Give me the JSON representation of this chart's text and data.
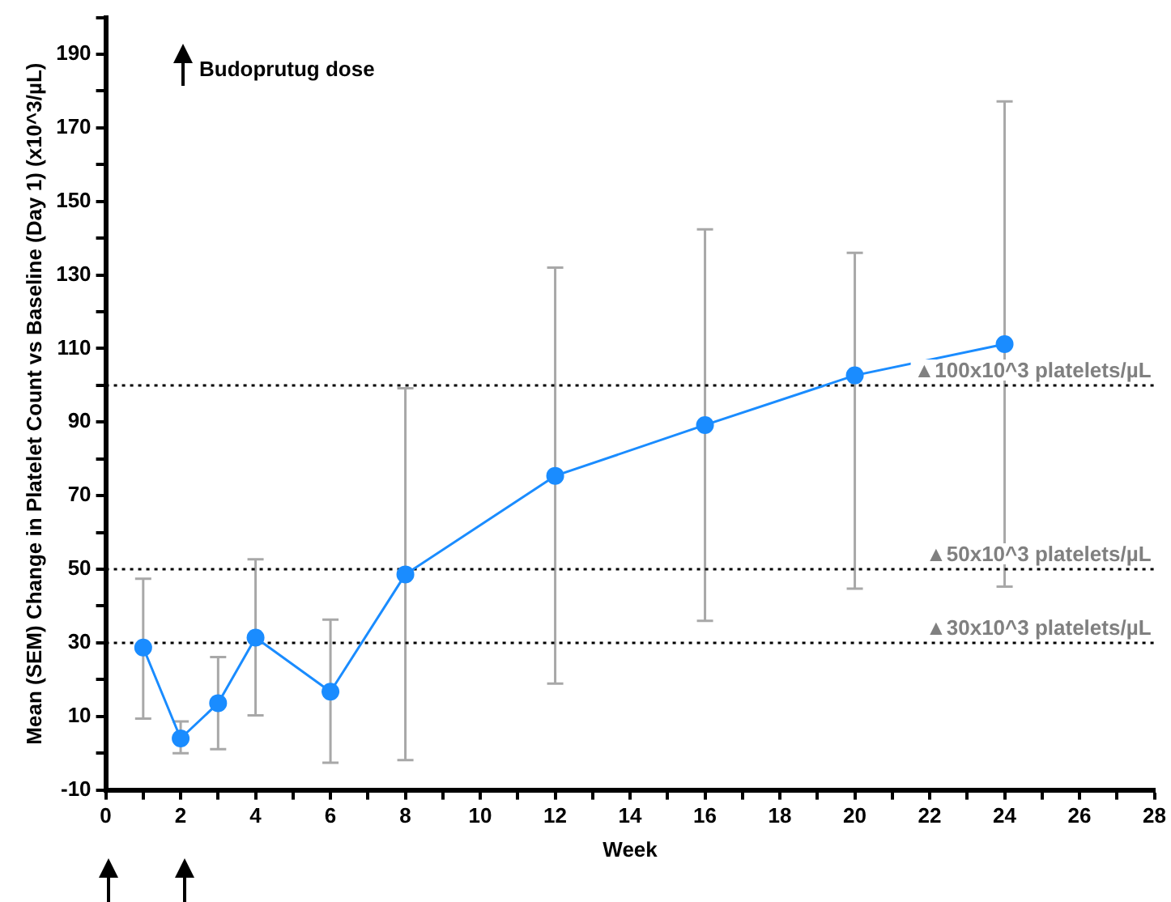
{
  "chart_data": {
    "type": "line",
    "xlabel": "Week",
    "ylabel": "Mean (SEM) Change in Platelet Count vs Baseline (Day 1) (x10^3/µL)",
    "annotations": [
      "Budoprutug dose"
    ],
    "x": [
      1,
      2,
      3,
      4,
      6,
      8,
      12,
      16,
      20,
      24
    ],
    "series": [
      {
        "color": "#1a8cff",
        "values": [
          28.7,
          4,
          13.6,
          31.4,
          16.7,
          48.6,
          75.4,
          89.2,
          102.7,
          111.2
        ],
        "errors": [
          [
            9.4,
            47.4
          ],
          [
            0,
            8.6
          ],
          [
            1.1,
            26.1
          ],
          [
            10.3,
            52.7
          ],
          [
            -2.6,
            36.3
          ],
          [
            -1.9,
            99.2
          ],
          [
            18.9,
            132
          ],
          [
            36,
            142.4
          ],
          [
            44.7,
            136
          ],
          [
            45.3,
            177.2
          ]
        ]
      }
    ],
    "xlim": [
      0,
      28
    ],
    "xticks": [
      0,
      {
        "value": 1,
        "label": null
      },
      2,
      {
        "value": 3,
        "label": null
      },
      4,
      {
        "value": 5,
        "label": null
      },
      6,
      {
        "value": 7,
        "label": null
      },
      8,
      {
        "value": 9,
        "label": null
      },
      10,
      {
        "value": 11,
        "label": null
      },
      12,
      {
        "value": 13,
        "label": null
      },
      14,
      {
        "value": 15,
        "label": null
      },
      16,
      {
        "value": 17,
        "label": null
      },
      18,
      {
        "value": 19,
        "label": null
      },
      20,
      {
        "value": 21,
        "label": null
      },
      22,
      {
        "value": 23,
        "label": null
      },
      24,
      {
        "value": 25,
        "label": null
      },
      26,
      {
        "value": 27,
        "label": null
      },
      28
    ],
    "ylim": [
      -10,
      200
    ],
    "yticks": [
      -10,
      {
        "value": 0,
        "label": null
      },
      10,
      {
        "value": 20,
        "label": null
      },
      30,
      {
        "value": 40,
        "label": null
      },
      50,
      {
        "value": 60,
        "label": null
      },
      70,
      {
        "value": 80,
        "label": null
      },
      90,
      {
        "value": 100,
        "label": null
      },
      110,
      {
        "value": 120,
        "label": null
      },
      130,
      {
        "value": 140,
        "label": null
      },
      150,
      {
        "value": 160,
        "label": null
      },
      170,
      {
        "value": 180,
        "label": null
      },
      190,
      {
        "value": 200,
        "label": null
      }
    ],
    "ref_lines": [
      {
        "axis": "y",
        "value": 100,
        "label": "▲100x10^3 platelets/µL",
        "line_style": "dotted"
      },
      {
        "axis": "y",
        "value": 50,
        "label": "▲50x10^3 platelets/µL",
        "line_style": "dotted"
      },
      {
        "axis": "y",
        "value": 30,
        "label": "▲30x10^3 platelets/µL",
        "line_style": "dotted"
      }
    ],
    "marker": "circle",
    "line_style": "solid",
    "legend": false
  }
}
